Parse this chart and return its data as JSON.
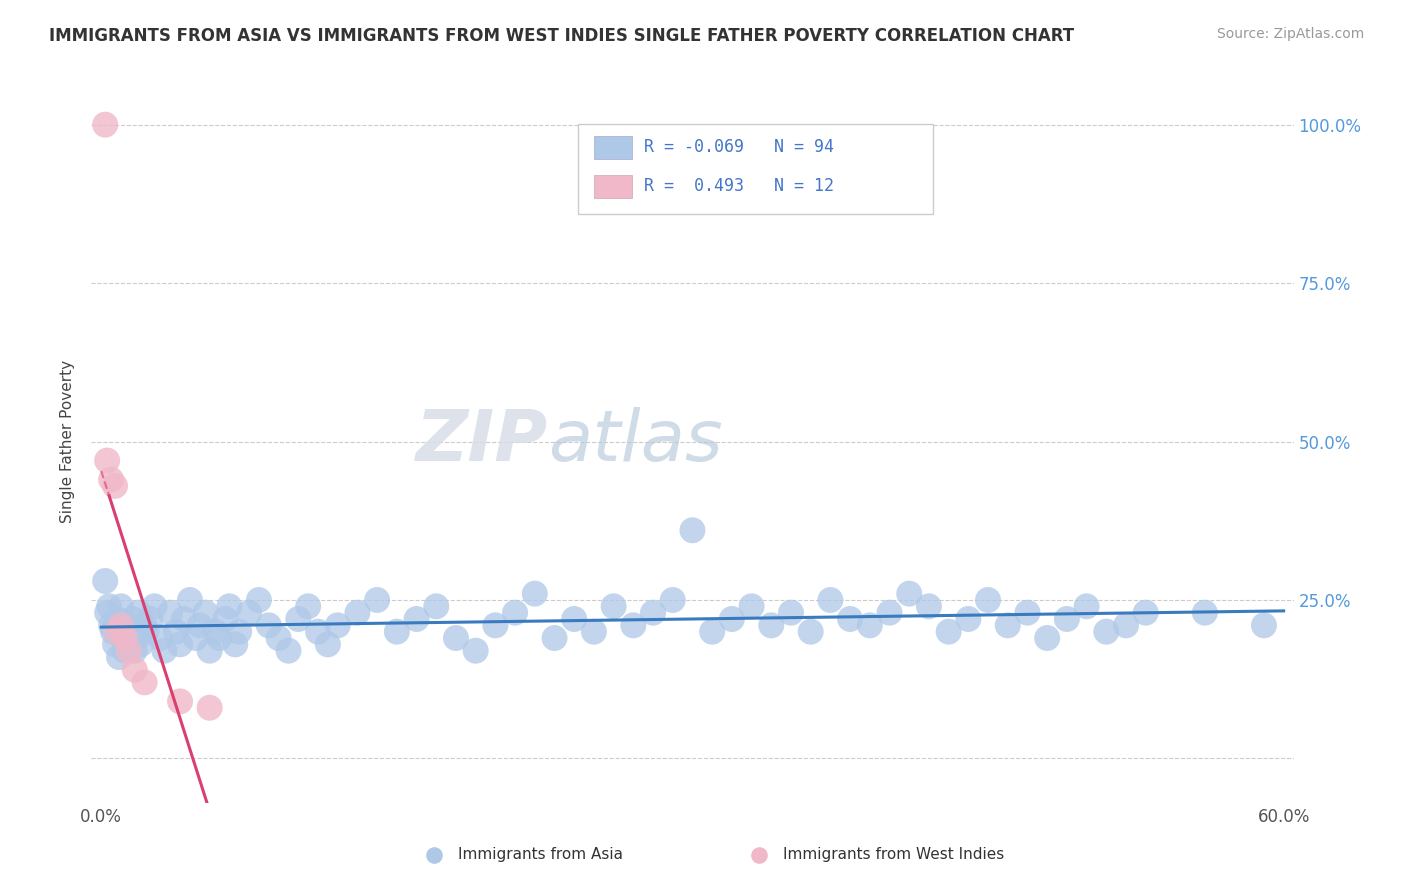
{
  "title": "IMMIGRANTS FROM ASIA VS IMMIGRANTS FROM WEST INDIES SINGLE FATHER POVERTY CORRELATION CHART",
  "source": "Source: ZipAtlas.com",
  "ylabel": "Single Father Poverty",
  "xlim": [
    -0.005,
    0.605
  ],
  "ylim": [
    -0.07,
    1.07
  ],
  "x_ticks": [
    0.0,
    0.1,
    0.2,
    0.3,
    0.4,
    0.5,
    0.6
  ],
  "x_tick_labels": [
    "0.0%",
    "",
    "",
    "",
    "",
    "",
    "60.0%"
  ],
  "y_ticks": [
    0.0,
    0.25,
    0.5,
    0.75,
    1.0
  ],
  "y_right_labels": [
    "",
    "25.0%",
    "50.0%",
    "75.0%",
    "100.0%"
  ],
  "background_color": "#ffffff",
  "grid_color": "#cccccc",
  "title_color": "#333333",
  "source_color": "#999999",
  "blue_dot_color": "#aec8e8",
  "pink_dot_color": "#f0b8c8",
  "blue_line_color": "#3a7abf",
  "pink_line_color": "#d94070",
  "right_axis_color": "#5599dd",
  "series1_label": "Immigrants from Asia",
  "series2_label": "Immigrants from West Indies",
  "legend_text_color": "#4477cc",
  "asia_x": [
    0.002,
    0.003,
    0.004,
    0.005,
    0.006,
    0.007,
    0.008,
    0.009,
    0.01,
    0.011,
    0.012,
    0.013,
    0.014,
    0.015,
    0.016,
    0.017,
    0.018,
    0.019,
    0.02,
    0.022,
    0.023,
    0.025,
    0.027,
    0.03,
    0.032,
    0.035,
    0.038,
    0.04,
    0.042,
    0.045,
    0.048,
    0.05,
    0.053,
    0.055,
    0.058,
    0.06,
    0.063,
    0.065,
    0.068,
    0.07,
    0.075,
    0.08,
    0.085,
    0.09,
    0.095,
    0.1,
    0.105,
    0.11,
    0.115,
    0.12,
    0.13,
    0.14,
    0.15,
    0.16,
    0.17,
    0.18,
    0.19,
    0.2,
    0.21,
    0.22,
    0.23,
    0.24,
    0.25,
    0.26,
    0.27,
    0.28,
    0.29,
    0.3,
    0.31,
    0.32,
    0.33,
    0.34,
    0.35,
    0.36,
    0.37,
    0.38,
    0.39,
    0.4,
    0.41,
    0.42,
    0.43,
    0.44,
    0.45,
    0.46,
    0.47,
    0.48,
    0.49,
    0.5,
    0.51,
    0.52,
    0.53,
    0.56,
    0.59
  ],
  "asia_y": [
    0.28,
    0.23,
    0.24,
    0.21,
    0.2,
    0.18,
    0.22,
    0.16,
    0.24,
    0.19,
    0.17,
    0.21,
    0.18,
    0.2,
    0.22,
    0.17,
    0.19,
    0.23,
    0.18,
    0.21,
    0.2,
    0.22,
    0.24,
    0.19,
    0.17,
    0.23,
    0.2,
    0.18,
    0.22,
    0.25,
    0.19,
    0.21,
    0.23,
    0.17,
    0.2,
    0.19,
    0.22,
    0.24,
    0.18,
    0.2,
    0.23,
    0.25,
    0.21,
    0.19,
    0.17,
    0.22,
    0.24,
    0.2,
    0.18,
    0.21,
    0.23,
    0.25,
    0.2,
    0.22,
    0.24,
    0.19,
    0.17,
    0.21,
    0.23,
    0.26,
    0.19,
    0.22,
    0.2,
    0.24,
    0.21,
    0.23,
    0.25,
    0.36,
    0.2,
    0.22,
    0.24,
    0.21,
    0.23,
    0.2,
    0.25,
    0.22,
    0.21,
    0.23,
    0.26,
    0.24,
    0.2,
    0.22,
    0.25,
    0.21,
    0.23,
    0.19,
    0.22,
    0.24,
    0.2,
    0.21,
    0.23,
    0.23,
    0.21
  ],
  "wi_x": [
    0.002,
    0.003,
    0.005,
    0.007,
    0.008,
    0.01,
    0.012,
    0.014,
    0.017,
    0.022,
    0.04,
    0.055
  ],
  "wi_y": [
    1.0,
    0.47,
    0.44,
    0.43,
    0.2,
    0.21,
    0.19,
    0.17,
    0.14,
    0.12,
    0.09,
    0.08
  ]
}
